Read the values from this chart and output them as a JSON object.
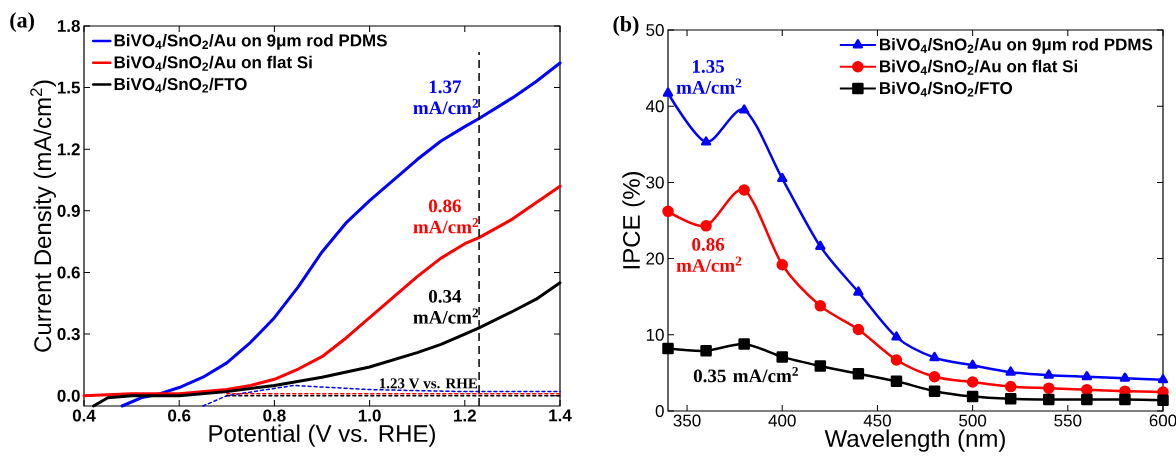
{
  "chart_data": [
    {
      "type": "line",
      "title": "(a)",
      "xlabel": "Potential (V vs. RHE)",
      "ylabel": "Current Density (mA/cm$^{2}$)",
      "xlim": [
        0.4,
        1.4
      ],
      "ylim": [
        -0.05,
        1.8
      ],
      "xticks": [
        0.4,
        0.6,
        0.8,
        {
          "value": 1.0,
          "label": "1.0"
        },
        1.2,
        1.4
      ],
      "yticks": [
        {
          "value": 0,
          "label": "0.0"
        },
        0.3,
        0.6,
        0.9,
        1.2,
        1.5,
        1.8
      ],
      "legend": "top left",
      "line_style": "solid",
      "series": [
        {
          "name": "BiVO$_{4}$/SnO$_{2}$/Au on 9μm rod PDMS",
          "color": "#0000ff",
          "x": [
            0.48,
            0.52,
            0.56,
            0.6,
            0.65,
            0.7,
            0.75,
            0.8,
            0.85,
            0.9,
            0.95,
            1.0,
            1.05,
            1.1,
            1.15,
            1.2,
            1.23,
            1.3,
            1.35,
            1.4
          ],
          "values": [
            -0.05,
            -0.01,
            0.01,
            0.04,
            0.09,
            0.16,
            0.26,
            0.38,
            0.53,
            0.7,
            0.84,
            0.95,
            1.05,
            1.15,
            1.24,
            1.31,
            1.35,
            1.45,
            1.53,
            1.62
          ]
        },
        {
          "name": "BiVO$_{4}$/SnO$_{2}$/Au on flat Si",
          "color": "#ff0000",
          "x": [
            0.4,
            0.5,
            0.6,
            0.7,
            0.75,
            0.8,
            0.85,
            0.9,
            0.95,
            1.0,
            1.05,
            1.1,
            1.15,
            1.2,
            1.23,
            1.3,
            1.35,
            1.4
          ],
          "values": [
            0.0,
            0.01,
            0.01,
            0.03,
            0.05,
            0.08,
            0.13,
            0.19,
            0.28,
            0.38,
            0.48,
            0.58,
            0.67,
            0.74,
            0.77,
            0.86,
            0.94,
            1.02
          ]
        },
        {
          "name": "BiVO$_{4}$/SnO$_{2}$/FTO",
          "color": "#000000",
          "x": [
            0.42,
            0.45,
            0.5,
            0.6,
            0.7,
            0.8,
            0.9,
            1.0,
            1.1,
            1.15,
            1.2,
            1.23,
            1.3,
            1.35,
            1.4
          ],
          "values": [
            -0.05,
            -0.01,
            0.0,
            0.0,
            0.02,
            0.05,
            0.09,
            0.14,
            0.21,
            0.25,
            0.3,
            0.33,
            0.41,
            0.47,
            0.55
          ]
        },
        {
          "color": "#0000ff",
          "line_style": "dashed",
          "x": [
            0.65,
            0.7,
            0.84,
            1.0,
            1.2,
            1.4
          ],
          "values": [
            -0.05,
            0.0,
            0.05,
            0.03,
            0.02,
            0.02
          ]
        },
        {
          "color": "#ff0000",
          "line_style": "dashed",
          "x": [
            0.7,
            1.4
          ],
          "values": [
            0.01,
            0.01
          ]
        },
        {
          "color": "#000000",
          "line_style": "dashed",
          "x": [
            0.7,
            1.4
          ],
          "values": [
            0.0,
            0.0
          ]
        }
      ],
      "ref_lines": [
        {
          "axis": "x",
          "value": 1.23,
          "label": "1.23 V vs. RHE",
          "color": "#000000",
          "line_style": "dashed"
        }
      ],
      "annotations": [
        "1.37 mA/cm$^{2}$",
        "0.86 mA/cm$^{2}$",
        "0.34 mA/cm$^{2}$"
      ]
    },
    {
      "type": "line",
      "title": "(b)",
      "xlabel": "Wavelength (nm)",
      "ylabel": "IPCE (%)",
      "xlim": [
        340,
        600
      ],
      "ylim": [
        0,
        50
      ],
      "xticks": [
        350,
        400,
        450,
        500,
        550,
        600
      ],
      "yticks": [
        0,
        10,
        20,
        30,
        40,
        50
      ],
      "legend": "top right",
      "line_style": "solid",
      "series": [
        {
          "name": "BiVO$_{4}$/SnO$_{2}$/Au on 9μm rod PDMS",
          "color": "#0000ff",
          "marker": "triangle",
          "x": [
            340,
            360,
            380,
            400,
            420,
            440,
            460,
            480,
            500,
            520,
            540,
            560,
            580,
            600
          ],
          "values": [
            41.7,
            35.3,
            39.5,
            30.5,
            21.6,
            15.6,
            9.7,
            7.0,
            6.0,
            5.1,
            4.7,
            4.5,
            4.3,
            4.1
          ]
        },
        {
          "name": "BiVO$_{4}$/SnO$_{2}$/Au on flat Si",
          "color": "#ff0000",
          "marker": "circle",
          "x": [
            340,
            360,
            380,
            400,
            420,
            440,
            460,
            480,
            500,
            520,
            540,
            560,
            580,
            600
          ],
          "values": [
            26.2,
            24.3,
            29.0,
            19.2,
            13.8,
            10.7,
            6.7,
            4.5,
            3.8,
            3.2,
            3.0,
            2.8,
            2.6,
            2.5
          ]
        },
        {
          "name": "BiVO$_{4}$/SnO$_{2}$/FTO",
          "color": "#000000",
          "marker": "square",
          "x": [
            340,
            360,
            380,
            400,
            420,
            440,
            460,
            480,
            500,
            520,
            540,
            560,
            580,
            600
          ],
          "values": [
            8.2,
            7.9,
            8.8,
            7.1,
            5.9,
            4.9,
            3.9,
            2.6,
            1.9,
            1.6,
            1.5,
            1.5,
            1.5,
            1.4
          ]
        }
      ],
      "annotations": [
        "1.35 mA/cm$^{2}$",
        "0.86 mA/cm$^{2}$",
        "0.35 mA/cm$^{2}$"
      ]
    }
  ]
}
